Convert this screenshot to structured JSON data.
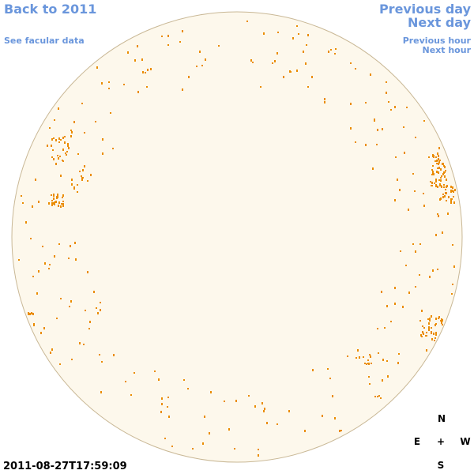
{
  "header": {
    "back_link": "Back to 2011",
    "facular_link": "See facular data",
    "previous_day": "Previous day",
    "next_day": "Next day",
    "previous_hour": "Previous hour",
    "next_hour": "Next hour"
  },
  "timestamp": "2011-08-27T17:59:09",
  "compass": {
    "north": "N",
    "east": "E",
    "center": "+",
    "west": "W",
    "south": "S"
  }
}
